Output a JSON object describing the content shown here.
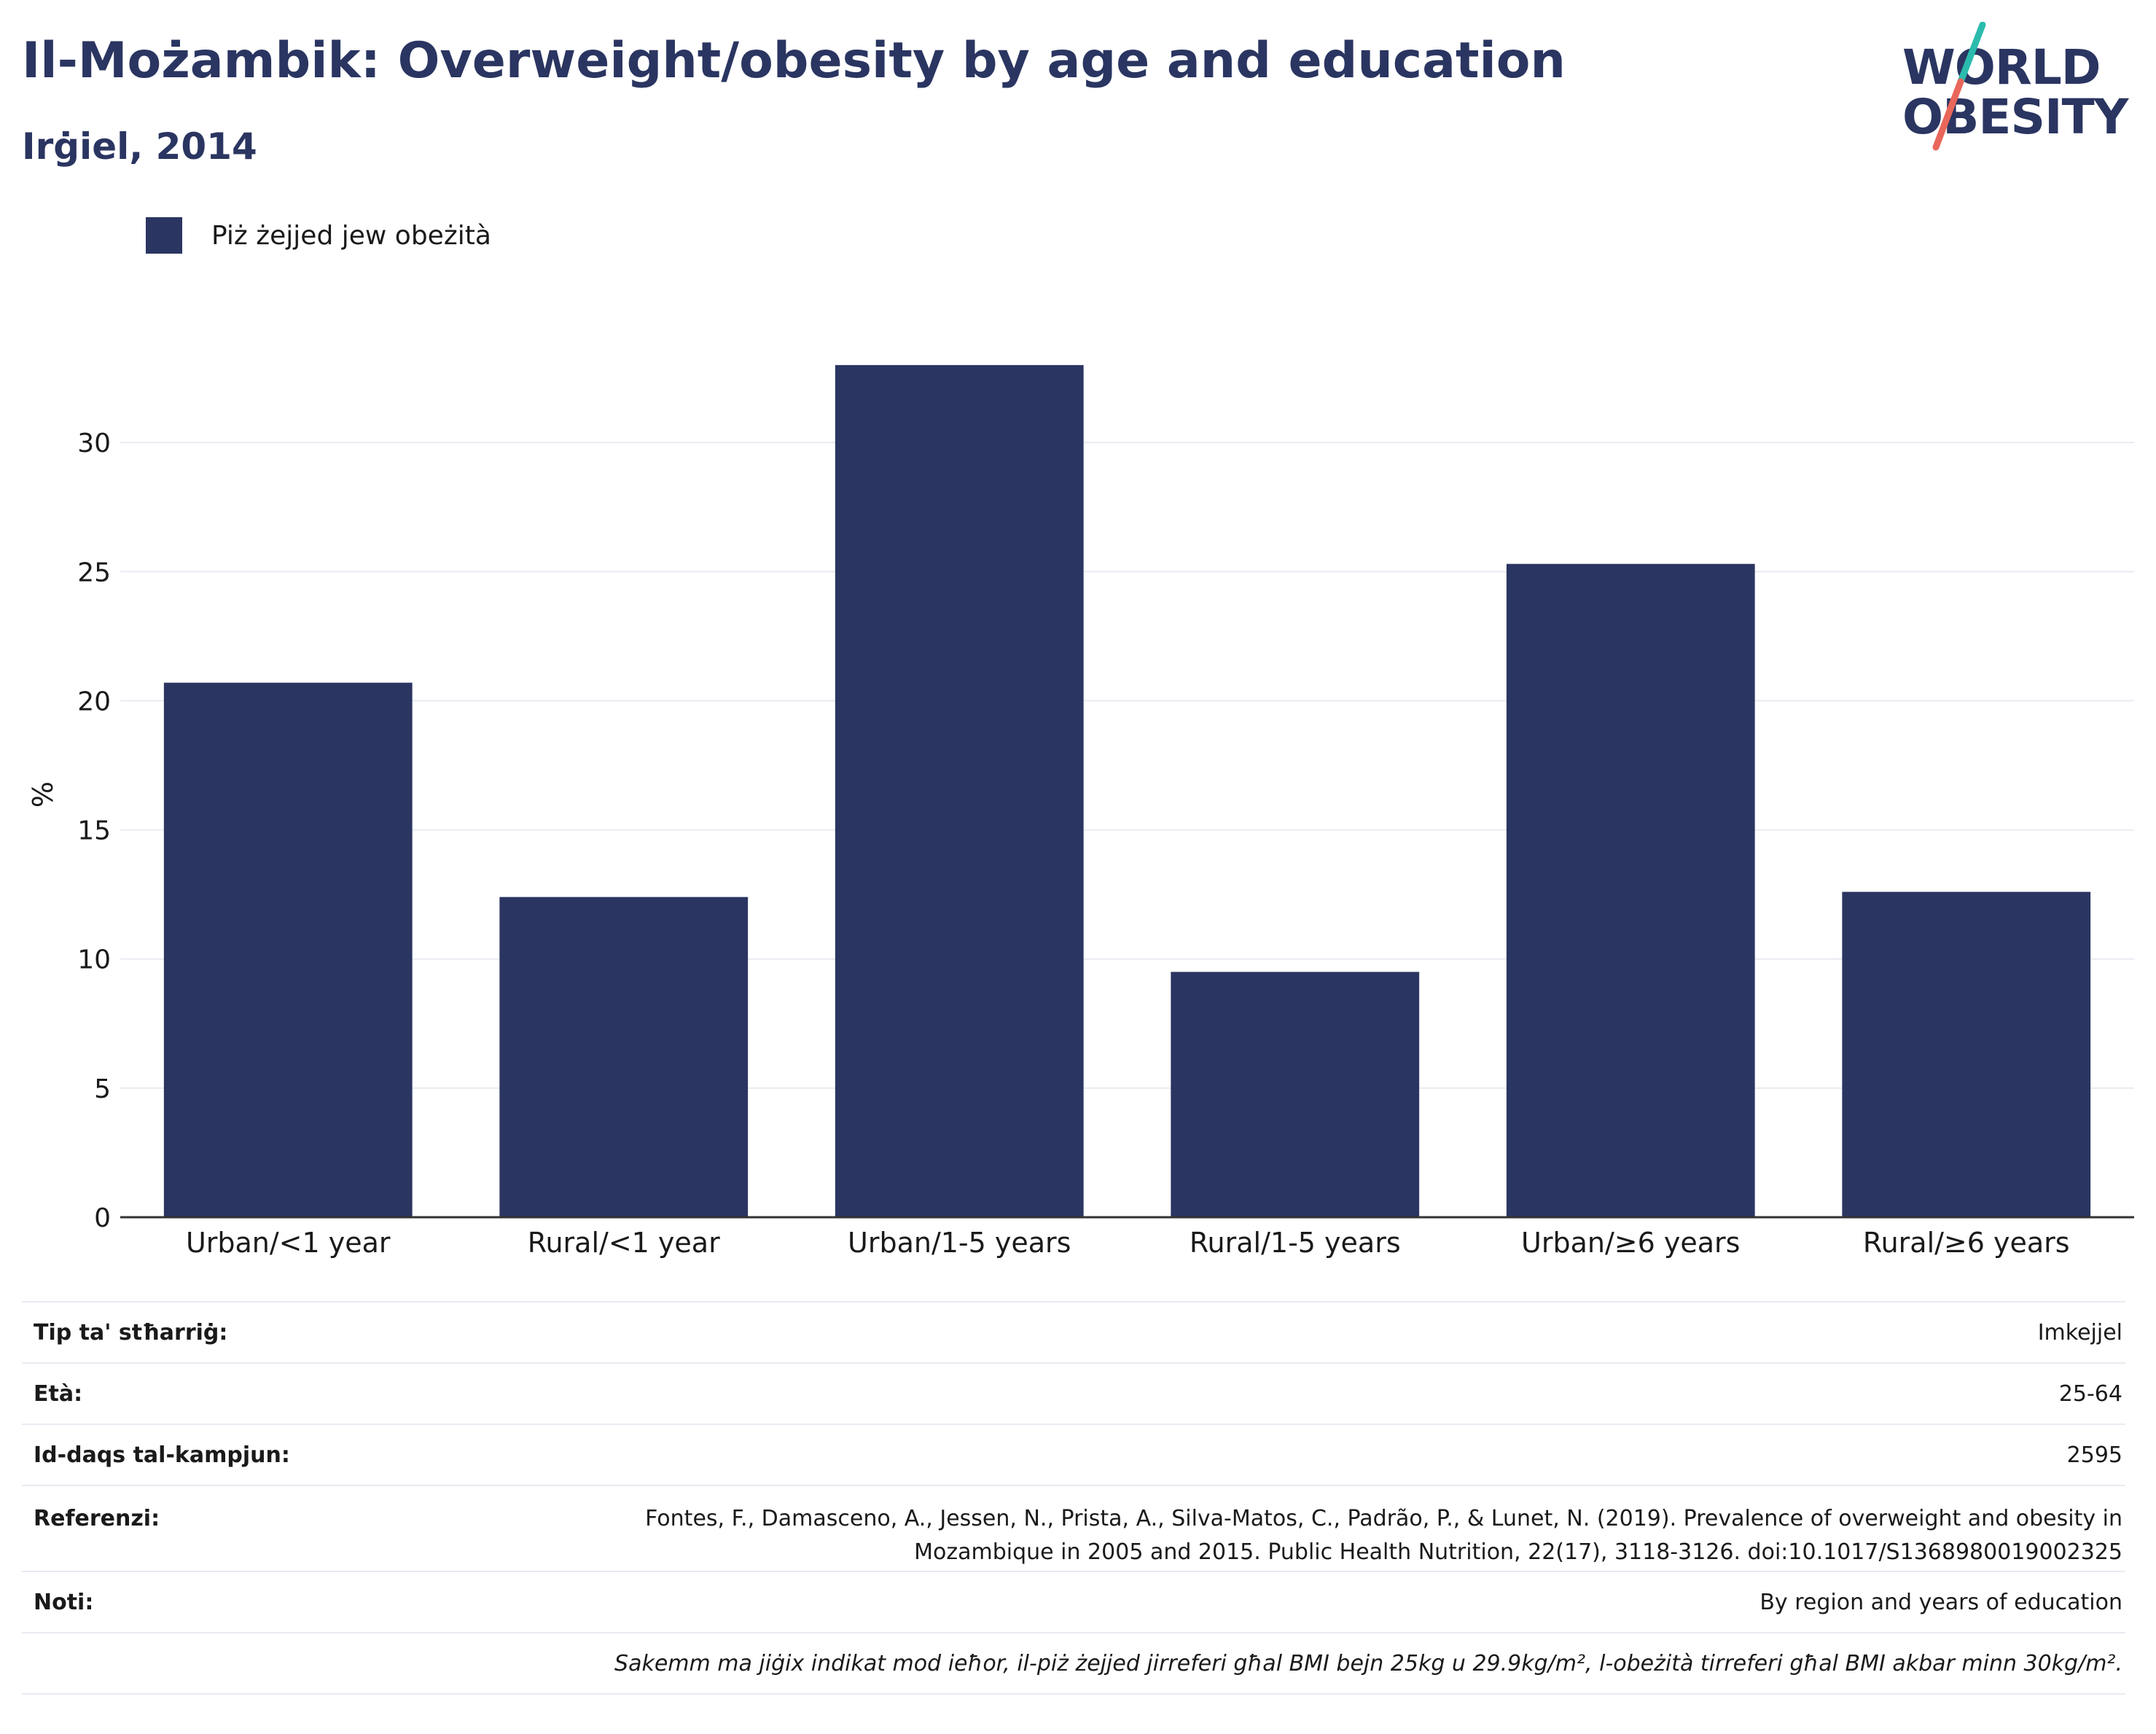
{
  "header": {
    "title": "Il-Możambik: Overweight/obesity by age and education",
    "subtitle": "Irġiel, 2014"
  },
  "logo": {
    "line1": "WORLD",
    "line2": "OBESITY",
    "colors": {
      "text": "#2a3561",
      "accent_teal": "#2bbbad",
      "accent_coral": "#e8675a"
    }
  },
  "legend": {
    "label": "Piż żejjed jew obeżità",
    "color": "#2a3561"
  },
  "chart_data": {
    "type": "bar",
    "categories": [
      "Urban/<1 year",
      "Rural/<1 year",
      "Urban/1-5 years",
      "Rural/1-5 years",
      "Urban/≥6 years",
      "Rural/≥6 years"
    ],
    "series": [
      {
        "name": "Piż żejjed jew obeżità",
        "values": [
          20.7,
          12.4,
          33.0,
          9.5,
          25.3,
          12.6
        ],
        "color": "#2a3561"
      }
    ],
    "ylabel": "%",
    "ylim": [
      0,
      35
    ],
    "yticks": [
      0,
      5,
      10,
      15,
      20,
      25,
      30
    ],
    "grid": true
  },
  "meta": {
    "survey_type": {
      "label": "Tip ta' stħarriġ:",
      "value": "Imkejjel"
    },
    "age": {
      "label": "Età:",
      "value": "25-64"
    },
    "sample_size": {
      "label": "Id-daqs tal-kampjun:",
      "value": "2595"
    },
    "reference": {
      "label": "Referenzi:",
      "line1": "Fontes, F., Damasceno, A., Jessen, N., Prista, A., Silva-Matos, C., Padrão, P., & Lunet, N. (2019). Prevalence of overweight and obesity in",
      "line2": "Mozambique in 2005 and 2015. Public Health Nutrition, 22(17), 3118-3126. doi:10.1017/S1368980019002325"
    },
    "notes": {
      "label": "Noti:",
      "value": "By region and years of education"
    },
    "footnote": "Sakemm ma jiġix indikat mod ieħor, il-piż żejjed jirreferi għal BMI bejn 25kg u 29.9kg/m², l-obeżità tirreferi għal BMI akbar minn 30kg/m²."
  }
}
